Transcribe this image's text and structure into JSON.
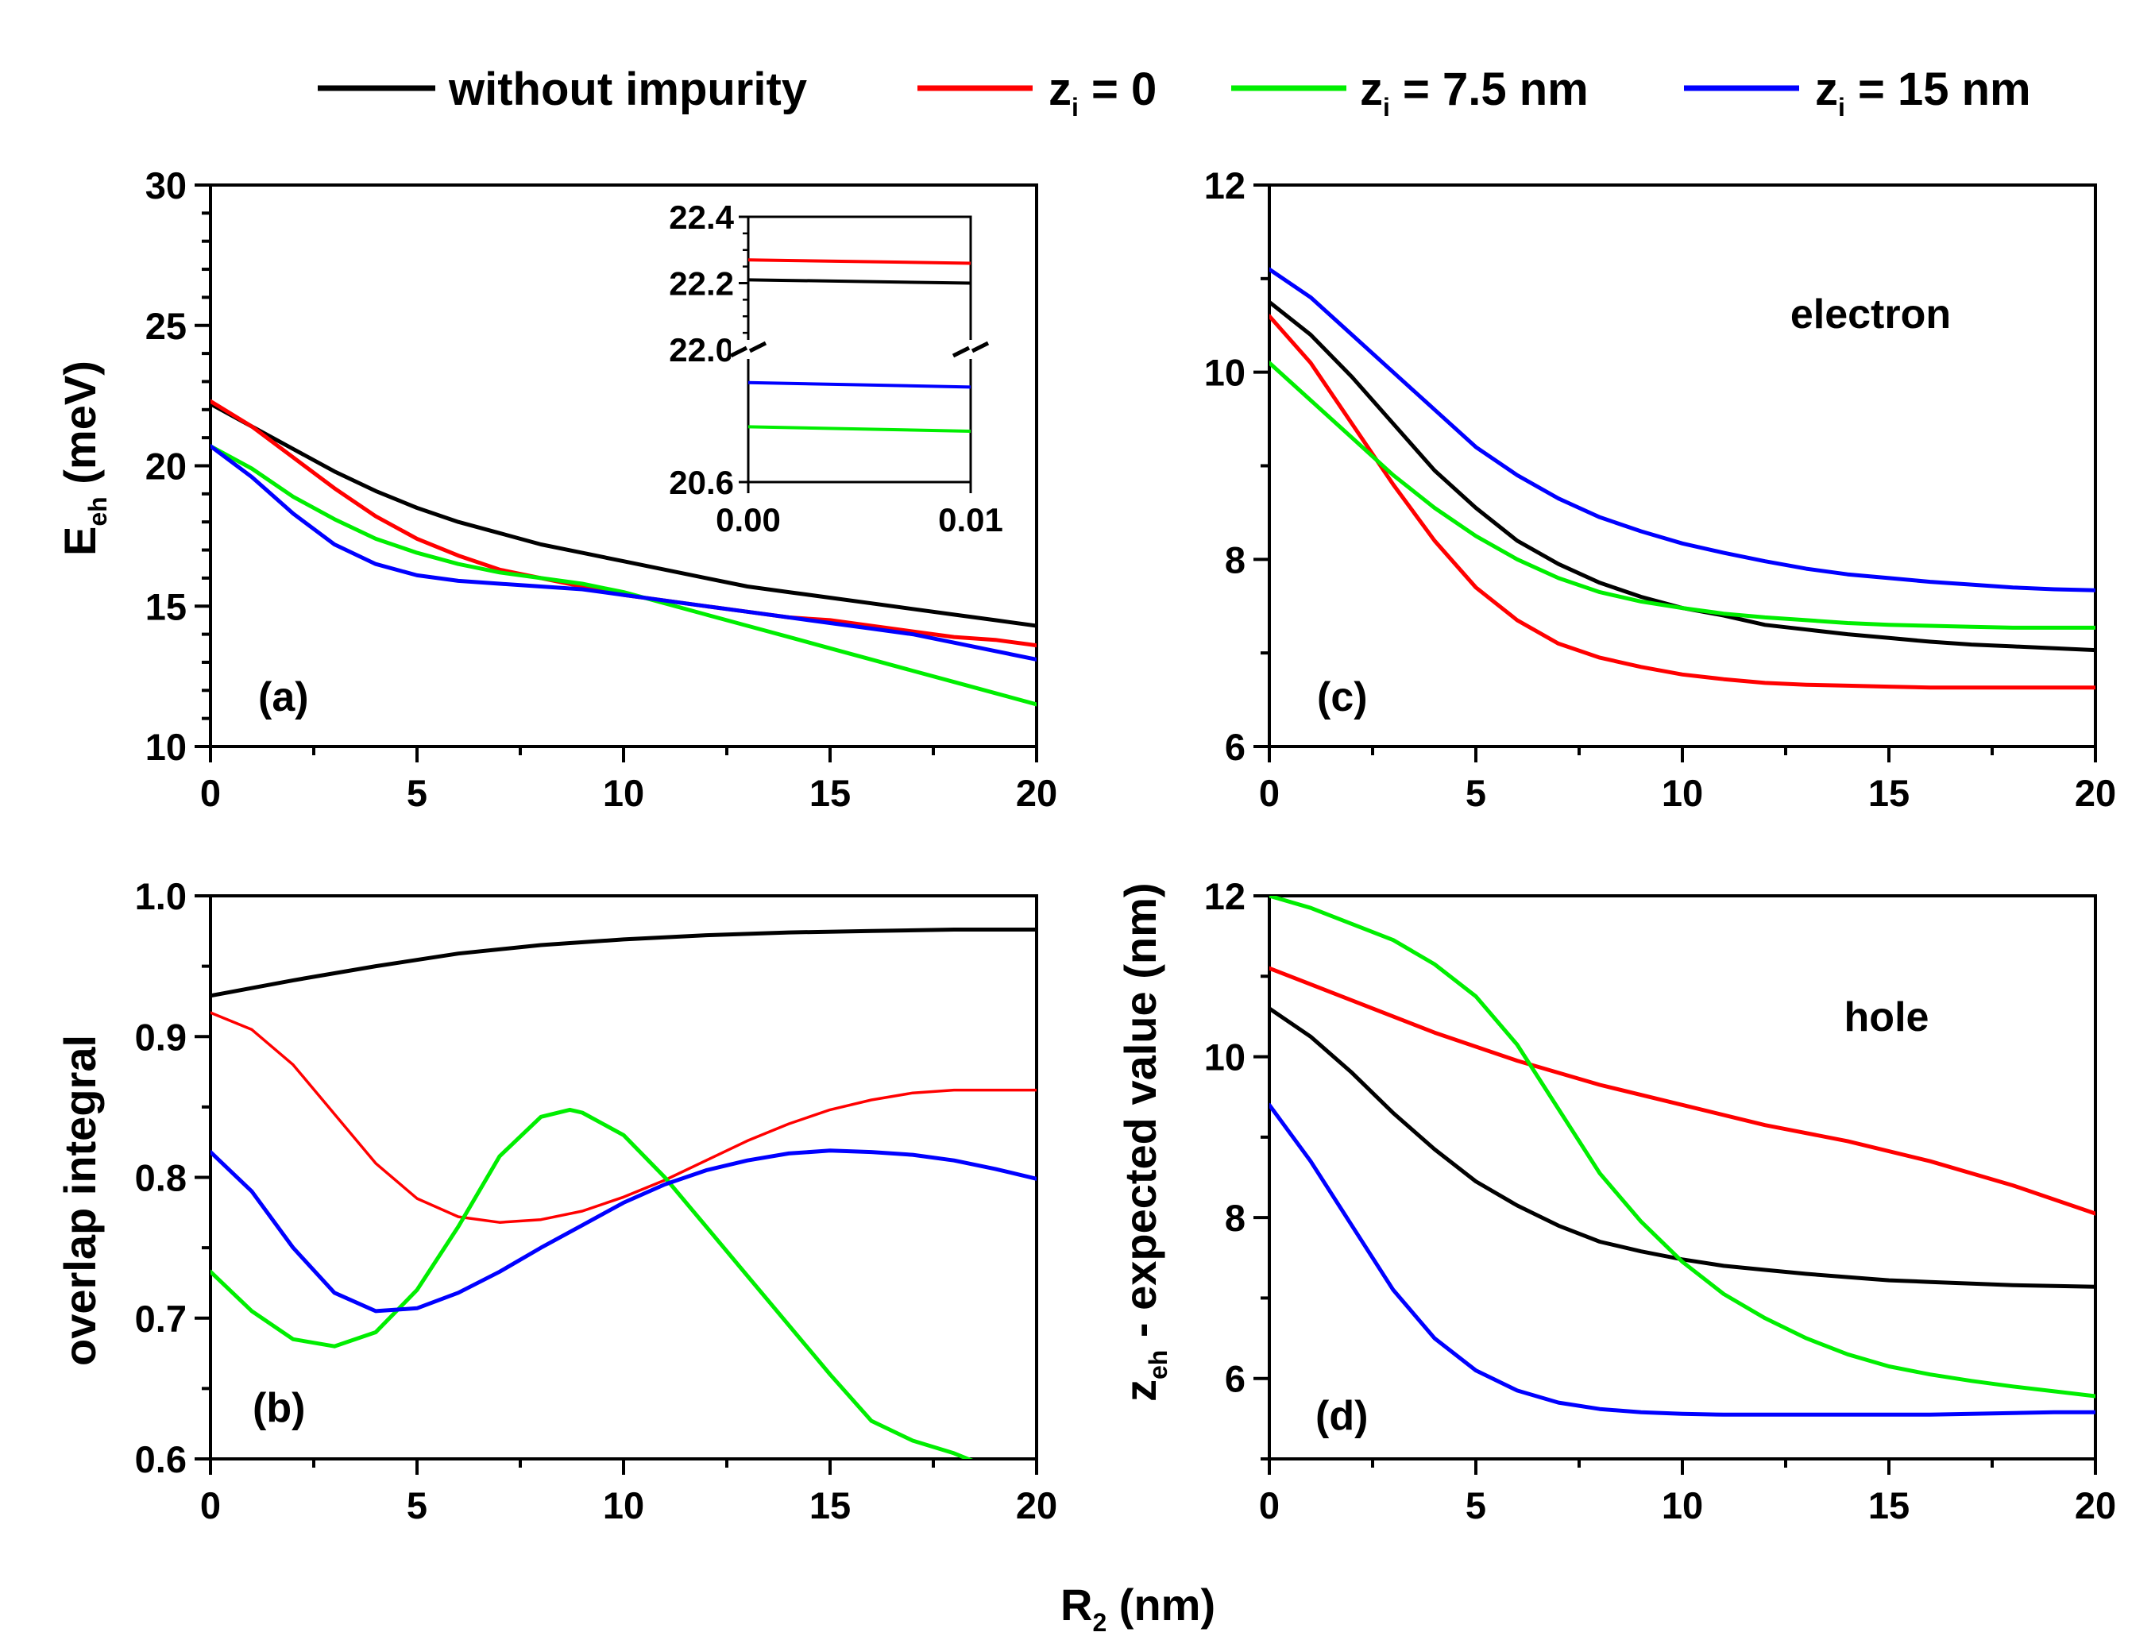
{
  "colors": {
    "without": "#000000",
    "zi0": "#ff0000",
    "zi75": "#00ee00",
    "zi15": "#0000ff"
  },
  "legend": {
    "items": [
      {
        "key": "without",
        "text": "without impurity"
      },
      {
        "key": "zi0",
        "text": "z",
        "sub": "i",
        "rest": " = 0"
      },
      {
        "key": "zi75",
        "text": "z",
        "sub": "i",
        "rest": " = 7.5 nm"
      },
      {
        "key": "zi15",
        "text": "z",
        "sub": "i",
        "rest": " = 15 nm"
      }
    ]
  },
  "shared": {
    "xlabel_main": "R",
    "xlabel_sub": "2",
    "xlabel_rest": " (nm)",
    "right_ylabel_main": "z",
    "right_ylabel_sub": "eh",
    "right_ylabel_rest": " - expected value (nm)"
  },
  "chart_data": [
    {
      "id": "a",
      "type": "line",
      "panel_label": "(a)",
      "ylabel_main": "E",
      "ylabel_sub": "eh",
      "ylabel_rest": " (meV)",
      "xlim": [
        0,
        20
      ],
      "ylim": [
        10,
        30
      ],
      "xticks": [
        0,
        5,
        10,
        15,
        20
      ],
      "yticks": [
        10,
        15,
        20,
        25,
        30
      ],
      "xtick_labels": [
        "0",
        "5",
        "10",
        "15",
        "20"
      ],
      "ytick_labels": [
        "10",
        "15",
        "20",
        "25",
        "30"
      ],
      "series": [
        {
          "key": "without",
          "name": "without impurity",
          "x": [
            0,
            1,
            2,
            3,
            4,
            5,
            6,
            7,
            8,
            9,
            10,
            11,
            12,
            13,
            14,
            15,
            16,
            17,
            18,
            19,
            20
          ],
          "y": [
            22.2,
            21.4,
            20.6,
            19.8,
            19.1,
            18.5,
            18.0,
            17.6,
            17.2,
            16.9,
            16.6,
            16.3,
            16.0,
            15.7,
            15.5,
            15.3,
            15.1,
            14.9,
            14.7,
            14.5,
            14.3
          ]
        },
        {
          "key": "zi0",
          "name": "zi = 0",
          "x": [
            0,
            1,
            2,
            3,
            4,
            5,
            6,
            7,
            8,
            9,
            10,
            11,
            12,
            13,
            14,
            15,
            16,
            17,
            18,
            19,
            20
          ],
          "y": [
            22.3,
            21.4,
            20.3,
            19.2,
            18.2,
            17.4,
            16.8,
            16.3,
            16.0,
            15.7,
            15.4,
            15.2,
            15.0,
            14.8,
            14.6,
            14.5,
            14.3,
            14.1,
            13.9,
            13.8,
            13.6
          ]
        },
        {
          "key": "zi75",
          "name": "zi = 7.5 nm",
          "x": [
            0,
            1,
            2,
            3,
            4,
            5,
            6,
            7,
            8,
            9,
            10,
            11,
            12,
            13,
            14,
            15,
            16,
            17,
            18,
            19,
            20
          ],
          "y": [
            20.7,
            19.9,
            18.9,
            18.1,
            17.4,
            16.9,
            16.5,
            16.2,
            16.0,
            15.8,
            15.5,
            15.1,
            14.7,
            14.3,
            13.9,
            13.5,
            13.1,
            12.7,
            12.3,
            11.9,
            11.5
          ]
        },
        {
          "key": "zi15",
          "name": "zi = 15 nm",
          "x": [
            0,
            1,
            2,
            3,
            4,
            5,
            6,
            7,
            8,
            9,
            10,
            11,
            12,
            13,
            14,
            15,
            16,
            17,
            18,
            19,
            20
          ],
          "y": [
            20.7,
            19.6,
            18.3,
            17.2,
            16.5,
            16.1,
            15.9,
            15.8,
            15.7,
            15.6,
            15.4,
            15.2,
            15.0,
            14.8,
            14.6,
            14.4,
            14.2,
            14.0,
            13.7,
            13.4,
            13.1
          ]
        }
      ],
      "inset": {
        "xlim": [
          0,
          0.01
        ],
        "xticks": [
          0,
          0.01
        ],
        "xtick_labels": [
          "0.00",
          "0.01"
        ],
        "ytick_labels": [
          "22.4",
          "22.2",
          "22.0",
          "20.6"
        ],
        "note": "broken y-axis between 22.0 and 20.6",
        "series": [
          {
            "key": "zi0",
            "y": [
              22.27,
              22.26
            ]
          },
          {
            "key": "without",
            "y": [
              22.21,
              22.2
            ]
          },
          {
            "key": "zi15",
            "y": [
              21.05,
              21.03
            ]
          },
          {
            "key": "zi75",
            "y": [
              20.85,
              20.83
            ]
          }
        ]
      }
    },
    {
      "id": "b",
      "type": "line",
      "panel_label": "(b)",
      "ylabel": "overlap integral",
      "xlim": [
        0,
        20
      ],
      "ylim": [
        0.6,
        1.0
      ],
      "xticks": [
        0,
        5,
        10,
        15,
        20
      ],
      "yticks": [
        0.6,
        0.7,
        0.8,
        0.9,
        1.0
      ],
      "xtick_labels": [
        "0",
        "5",
        "10",
        "15",
        "20"
      ],
      "ytick_labels": [
        "0.6",
        "0.7",
        "0.8",
        "0.9",
        "1.0"
      ],
      "series": [
        {
          "key": "without",
          "name": "without impurity",
          "x": [
            0,
            2,
            4,
            6,
            8,
            10,
            12,
            14,
            16,
            18,
            20
          ],
          "y": [
            0.929,
            0.94,
            0.95,
            0.959,
            0.965,
            0.969,
            0.972,
            0.974,
            0.975,
            0.976,
            0.976
          ]
        },
        {
          "key": "zi0",
          "name": "zi = 0",
          "x": [
            0,
            1,
            2,
            3,
            4,
            5,
            6,
            7,
            8,
            9,
            10,
            11,
            12,
            13,
            14,
            15,
            16,
            17,
            18,
            19,
            20
          ],
          "y": [
            0.917,
            0.905,
            0.88,
            0.845,
            0.81,
            0.785,
            0.772,
            0.768,
            0.77,
            0.776,
            0.786,
            0.798,
            0.812,
            0.826,
            0.838,
            0.848,
            0.855,
            0.86,
            0.862,
            0.862,
            0.862
          ]
        },
        {
          "key": "zi75",
          "name": "zi = 7.5 nm",
          "x": [
            0,
            1,
            2,
            3,
            4,
            5,
            6,
            7,
            8,
            8.7,
            9,
            10,
            11,
            12,
            13,
            14,
            15,
            16,
            17,
            18,
            18.5
          ],
          "y": [
            0.733,
            0.705,
            0.685,
            0.68,
            0.69,
            0.72,
            0.765,
            0.815,
            0.843,
            0.848,
            0.846,
            0.83,
            0.8,
            0.765,
            0.73,
            0.695,
            0.66,
            0.627,
            0.613,
            0.604,
            0.598
          ]
        },
        {
          "key": "zi15",
          "name": "zi = 15 nm",
          "x": [
            0,
            1,
            2,
            3,
            4,
            5,
            6,
            7,
            8,
            9,
            10,
            11,
            12,
            13,
            14,
            15,
            16,
            17,
            18,
            19,
            20
          ],
          "y": [
            0.818,
            0.79,
            0.75,
            0.718,
            0.705,
            0.707,
            0.718,
            0.733,
            0.75,
            0.766,
            0.782,
            0.795,
            0.805,
            0.812,
            0.817,
            0.819,
            0.818,
            0.816,
            0.812,
            0.806,
            0.799
          ]
        }
      ]
    },
    {
      "id": "c",
      "type": "line",
      "panel_label": "(c)",
      "annotation": "electron",
      "xlim": [
        0,
        20
      ],
      "ylim": [
        6,
        12
      ],
      "xticks": [
        0,
        5,
        10,
        15,
        20
      ],
      "yticks": [
        6,
        8,
        10,
        12
      ],
      "xtick_labels": [
        "0",
        "5",
        "10",
        "15",
        "20"
      ],
      "ytick_labels": [
        "6",
        "8",
        "10",
        "12"
      ],
      "series": [
        {
          "key": "without",
          "name": "without impurity",
          "x": [
            0,
            1,
            2,
            3,
            4,
            5,
            6,
            7,
            8,
            9,
            10,
            11,
            12,
            13,
            14,
            15,
            16,
            17,
            18,
            19,
            20
          ],
          "y": [
            10.75,
            10.4,
            9.95,
            9.45,
            8.95,
            8.55,
            8.2,
            7.95,
            7.75,
            7.6,
            7.48,
            7.4,
            7.3,
            7.25,
            7.2,
            7.16,
            7.12,
            7.09,
            7.07,
            7.05,
            7.03
          ]
        },
        {
          "key": "zi0",
          "name": "zi = 0",
          "x": [
            0,
            1,
            2,
            3,
            4,
            5,
            6,
            7,
            8,
            9,
            10,
            11,
            12,
            13,
            14,
            15,
            16,
            17,
            18,
            19,
            20
          ],
          "y": [
            10.6,
            10.1,
            9.45,
            8.8,
            8.2,
            7.7,
            7.35,
            7.1,
            6.95,
            6.85,
            6.77,
            6.72,
            6.68,
            6.66,
            6.65,
            6.64,
            6.63,
            6.63,
            6.63,
            6.63,
            6.63
          ]
        },
        {
          "key": "zi75",
          "name": "zi = 7.5 nm",
          "x": [
            0,
            1,
            2,
            3,
            4,
            5,
            6,
            7,
            8,
            9,
            10,
            11,
            12,
            13,
            14,
            15,
            16,
            17,
            18,
            19,
            20
          ],
          "y": [
            10.1,
            9.7,
            9.3,
            8.9,
            8.55,
            8.25,
            8.0,
            7.8,
            7.65,
            7.55,
            7.48,
            7.42,
            7.38,
            7.35,
            7.32,
            7.3,
            7.29,
            7.28,
            7.27,
            7.27,
            7.27
          ]
        },
        {
          "key": "zi15",
          "name": "zi = 15 nm",
          "x": [
            0,
            1,
            2,
            3,
            4,
            5,
            6,
            7,
            8,
            9,
            10,
            11,
            12,
            13,
            14,
            15,
            16,
            17,
            18,
            19,
            20
          ],
          "y": [
            11.1,
            10.8,
            10.4,
            10.0,
            9.6,
            9.2,
            8.9,
            8.65,
            8.45,
            8.3,
            8.17,
            8.07,
            7.98,
            7.9,
            7.84,
            7.8,
            7.76,
            7.73,
            7.7,
            7.68,
            7.67
          ]
        }
      ]
    },
    {
      "id": "d",
      "type": "line",
      "panel_label": "(d)",
      "annotation": "hole",
      "xlim": [
        0,
        20
      ],
      "ylim": [
        5,
        12
      ],
      "xticks": [
        0,
        5,
        10,
        15,
        20
      ],
      "yticks": [
        6,
        8,
        10,
        12
      ],
      "xtick_labels": [
        "0",
        "5",
        "10",
        "15",
        "20"
      ],
      "ytick_labels": [
        "6",
        "8",
        "10",
        "12"
      ],
      "series": [
        {
          "key": "without",
          "name": "without impurity",
          "x": [
            0,
            1,
            2,
            3,
            4,
            5,
            6,
            7,
            8,
            9,
            10,
            11,
            12,
            13,
            14,
            15,
            16,
            17,
            18,
            19,
            20
          ],
          "y": [
            10.6,
            10.25,
            9.8,
            9.3,
            8.85,
            8.45,
            8.15,
            7.9,
            7.7,
            7.58,
            7.48,
            7.4,
            7.35,
            7.3,
            7.26,
            7.22,
            7.2,
            7.18,
            7.16,
            7.15,
            7.14
          ]
        },
        {
          "key": "zi0",
          "name": "zi = 0",
          "x": [
            0,
            2,
            4,
            6,
            8,
            10,
            12,
            14,
            16,
            18,
            20
          ],
          "y": [
            11.1,
            10.7,
            10.3,
            9.95,
            9.65,
            9.4,
            9.15,
            8.95,
            8.7,
            8.4,
            8.05
          ]
        },
        {
          "key": "zi75",
          "name": "zi = 7.5 nm",
          "x": [
            0,
            1,
            2,
            3,
            4,
            5,
            6,
            7,
            8,
            9,
            10,
            11,
            12,
            13,
            14,
            15,
            16,
            17,
            18,
            19,
            20
          ],
          "y": [
            12.0,
            11.85,
            11.65,
            11.45,
            11.15,
            10.75,
            10.15,
            9.35,
            8.55,
            7.95,
            7.45,
            7.05,
            6.75,
            6.5,
            6.3,
            6.15,
            6.05,
            5.97,
            5.9,
            5.84,
            5.78
          ]
        },
        {
          "key": "zi15",
          "name": "zi = 15 nm",
          "x": [
            0,
            1,
            2,
            3,
            4,
            5,
            6,
            7,
            8,
            9,
            10,
            11,
            12,
            13,
            14,
            15,
            16,
            17,
            18,
            19,
            20
          ],
          "y": [
            9.4,
            8.7,
            7.9,
            7.1,
            6.5,
            6.1,
            5.85,
            5.7,
            5.62,
            5.58,
            5.56,
            5.55,
            5.55,
            5.55,
            5.55,
            5.55,
            5.55,
            5.56,
            5.57,
            5.58,
            5.58
          ]
        }
      ]
    }
  ]
}
